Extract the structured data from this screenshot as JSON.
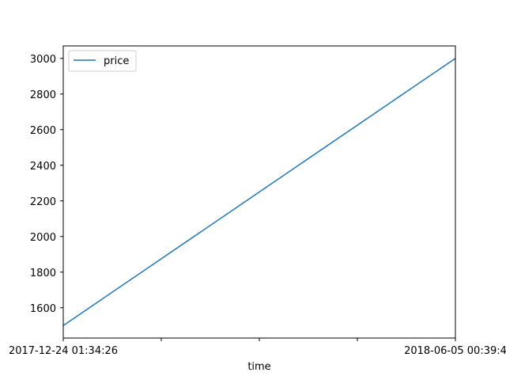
{
  "chart_data": {
    "type": "line",
    "title": "",
    "xlabel": "time",
    "ylabel": "",
    "x_tick_labels": {
      "first": "2017-12-24 01:34:26",
      "last": "2018-06-05 00:39:4"
    },
    "x_minor_tick_count": 3,
    "y_ticks": [
      1600,
      1800,
      2000,
      2200,
      2400,
      2600,
      2800,
      3000
    ],
    "ylim": [
      1430,
      3070
    ],
    "series": [
      {
        "name": "price",
        "color": "#1f77b4",
        "x": [
          0,
          1
        ],
        "values": [
          1500,
          3000
        ]
      }
    ],
    "legend": {
      "position": "top-left"
    },
    "grid": false
  }
}
